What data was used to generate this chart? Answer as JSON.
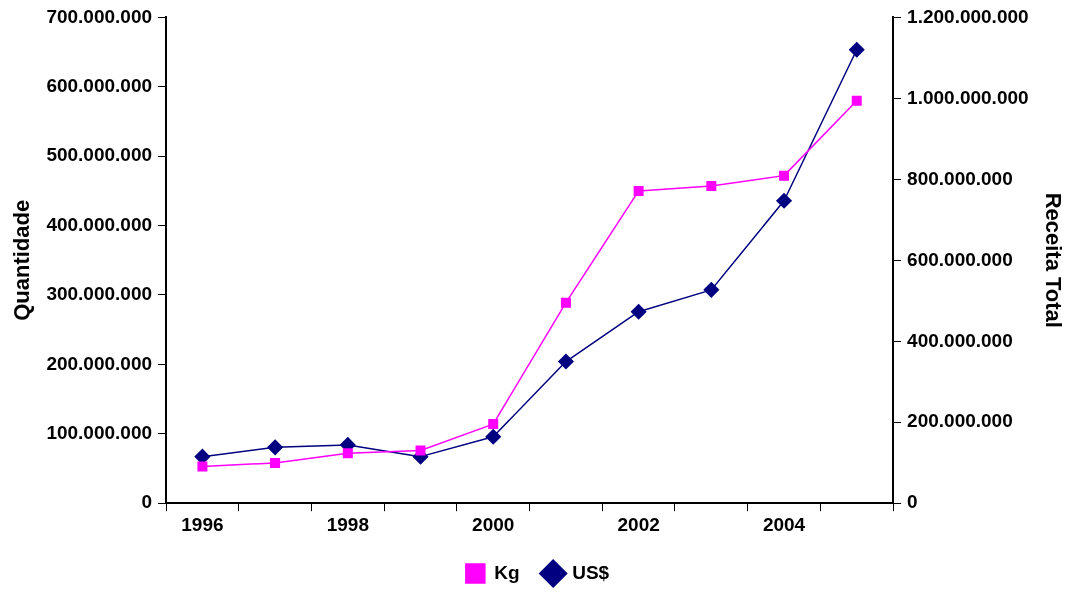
{
  "chart_data": {
    "type": "line",
    "ylabel": "Quantidade",
    "y2label": "Receita Total",
    "categories": [
      "1996",
      null,
      "1998",
      null,
      "2000",
      null,
      "2002",
      null,
      "2004",
      null
    ],
    "series": [
      {
        "name": "Kg",
        "color": "#ff00ff",
        "marker": "square",
        "values": [
          53000000,
          58000000,
          72000000,
          76000000,
          114000000,
          289000000,
          450000000,
          457000000,
          472000000,
          580000000
        ]
      },
      {
        "name": "US$",
        "color": "#000080",
        "marker": "diamond",
        "axis": "y2",
        "values": [
          115000000,
          138000000,
          144000000,
          115000000,
          164000000,
          350000000,
          473000000,
          527000000,
          747000000,
          1120000000
        ]
      }
    ],
    "ylim": [
      0,
      700000000
    ],
    "yticks": [
      0,
      {
        "value": 100000000,
        "label": "100.000.000"
      },
      {
        "value": 200000000,
        "label": "200.000.000"
      },
      {
        "value": 300000000,
        "label": "300.000.000"
      },
      {
        "value": 400000000,
        "label": "400.000.000"
      },
      {
        "value": 500000000,
        "label": "500.000.000"
      },
      {
        "value": 600000000,
        "label": "600.000.000"
      },
      {
        "value": 700000000,
        "label": "700.000.000"
      }
    ],
    "y2lim": [
      0,
      1200000000
    ],
    "y2ticks": [
      0,
      {
        "value": 200000000,
        "label": "200.000.000"
      },
      {
        "value": 400000000,
        "label": "400.000.000"
      },
      {
        "value": 600000000,
        "label": "600.000.000"
      },
      {
        "value": 800000000,
        "label": "800.000.000"
      },
      {
        "value": 1000000000,
        "label": "1.000.000.000"
      },
      {
        "value": 1200000000,
        "label": "1.200.000.000"
      }
    ],
    "grid": false,
    "legend": "bottom",
    "line_style": "solid"
  }
}
